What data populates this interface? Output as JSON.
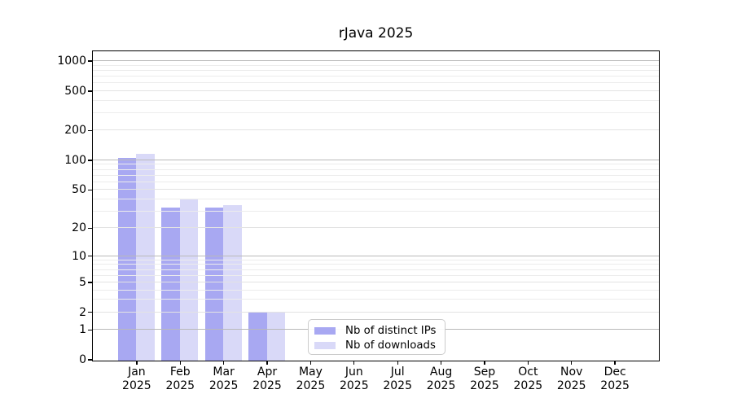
{
  "title": "rJava 2025",
  "chart_data": {
    "type": "bar",
    "title": "rJava 2025",
    "categories": [
      "Jan 2025",
      "Feb 2025",
      "Mar 2025",
      "Apr 2025",
      "May 2025",
      "Jun 2025",
      "Jul 2025",
      "Aug 2025",
      "Sep 2025",
      "Oct 2025",
      "Nov 2025",
      "Dec 2025"
    ],
    "series": [
      {
        "name": "Nb of distinct IPs",
        "color": "#a8a8f2",
        "values": [
          107,
          33,
          33,
          2,
          0,
          0,
          0,
          0,
          0,
          0,
          0,
          0
        ]
      },
      {
        "name": "Nb of downloads",
        "color": "#d9d9f8",
        "values": [
          117,
          41,
          35,
          2,
          0,
          0,
          0,
          0,
          0,
          0,
          0,
          0
        ]
      }
    ],
    "xlabel": "",
    "ylabel": "",
    "y_scale": "log10(value+1)",
    "ylim": [
      0,
      1255
    ],
    "y_ticks": [
      0,
      1,
      2,
      5,
      10,
      20,
      50,
      100,
      200,
      500,
      1000
    ],
    "y_minor_ticks": [
      3,
      4,
      6,
      7,
      8,
      9,
      30,
      40,
      60,
      70,
      80,
      90,
      300,
      400,
      600,
      700,
      800,
      900
    ],
    "y_major_grid": [
      1,
      10,
      100,
      1000
    ],
    "grid": "horizontal",
    "legend": {
      "position": "lower center"
    },
    "colors": {
      "grid_major": "#b9b9b9",
      "grid_minor": "#ececec",
      "axis": "#000000",
      "background": "#ffffff"
    }
  }
}
